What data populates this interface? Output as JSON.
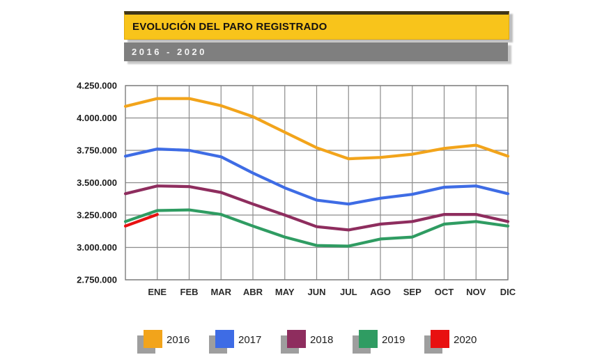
{
  "header": {
    "title": "EVOLUCIÓN DEL PARO REGISTRADO",
    "subtitle": "2016 - 2020"
  },
  "colors": {
    "banner_yellow": "#f8c41b",
    "banner_yellow_border": "#e0a90e",
    "banner_gray": "#7f7f7f",
    "grid": "#8c8c8c",
    "plot_border": "#7d7d7d",
    "axis_text": "#1c1c1c",
    "legend_shadow": "#9e9e9e"
  },
  "chart_data": {
    "type": "line",
    "title": "EVOLUCIÓN DEL PARO REGISTRADO",
    "subtitle": "2016 - 2020",
    "xlabel": "",
    "ylabel": "",
    "grid": true,
    "legend_position": "bottom",
    "ylim": [
      2750000,
      4250000
    ],
    "y_tick_step": 250000,
    "y_ticks": [
      {
        "value": 4250000,
        "label": "4.250.000"
      },
      {
        "value": 4000000,
        "label": "4.000.000"
      },
      {
        "value": 3750000,
        "label": "3.750.000"
      },
      {
        "value": 3500000,
        "label": "3.500.000"
      },
      {
        "value": 3250000,
        "label": "3.250.000"
      },
      {
        "value": 3000000,
        "label": "3.000.000"
      },
      {
        "value": 2750000,
        "label": "2.750.000"
      }
    ],
    "x_categories": [
      "ENE",
      "FEB",
      "MAR",
      "ABR",
      "MAY",
      "JUN",
      "JUL",
      "AGO",
      "SEP",
      "OCT",
      "NOV",
      "DIC"
    ],
    "layout_note": "each line starts at the left axis edge (one slot before ENE) with start_value",
    "series": [
      {
        "name": "2016",
        "color": "#f2a41b",
        "start_value": 4090000,
        "values": [
          4150000,
          4150000,
          4095000,
          4010000,
          3890000,
          3770000,
          3685000,
          3695000,
          3720000,
          3765000,
          3790000,
          3705000
        ]
      },
      {
        "name": "2017",
        "color": "#3e6ce5",
        "start_value": 3705000,
        "values": [
          3760000,
          3750000,
          3700000,
          3575000,
          3460000,
          3365000,
          3335000,
          3380000,
          3410000,
          3465000,
          3475000,
          3415000
        ]
      },
      {
        "name": "2018",
        "color": "#8e2d5e",
        "start_value": 3415000,
        "values": [
          3475000,
          3470000,
          3425000,
          3335000,
          3250000,
          3160000,
          3135000,
          3180000,
          3200000,
          3255000,
          3255000,
          3200000
        ]
      },
      {
        "name": "2019",
        "color": "#2f9c62",
        "start_value": 3200000,
        "values": [
          3285000,
          3290000,
          3255000,
          3165000,
          3080000,
          3015000,
          3010000,
          3065000,
          3080000,
          3180000,
          3200000,
          3165000
        ]
      },
      {
        "name": "2020",
        "color": "#e81111",
        "start_value": 3165000,
        "values": [
          3255000
        ]
      }
    ]
  }
}
